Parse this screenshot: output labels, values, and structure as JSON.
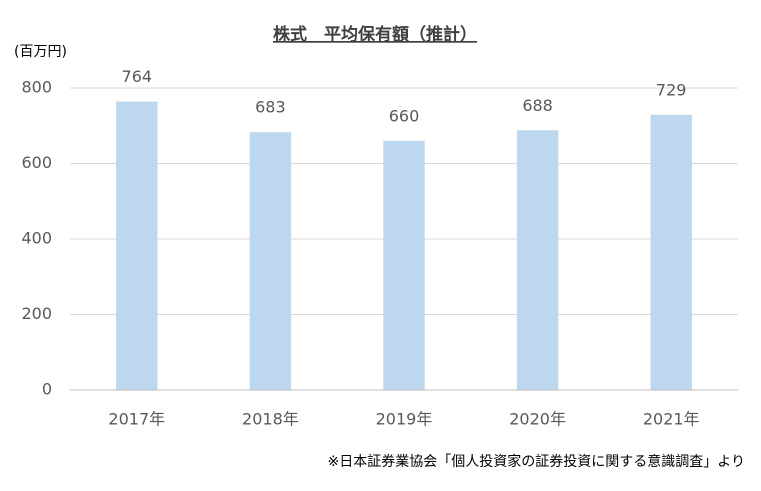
{
  "chart_data": {
    "type": "bar",
    "title": "株式　平均保有額（推計）",
    "y_axis_label": "(百万円)",
    "categories": [
      "2017年",
      "2018年",
      "2019年",
      "2020年",
      "2021年"
    ],
    "values": [
      764,
      683,
      660,
      688,
      729
    ],
    "color": "#bdd7ee",
    "ylim": [
      0,
      800
    ],
    "yticks": [
      0,
      200,
      400,
      600,
      800
    ],
    "grid": true,
    "note": "※日本証券業協会「個人投資家の証券投資に関する意識調査」より"
  }
}
